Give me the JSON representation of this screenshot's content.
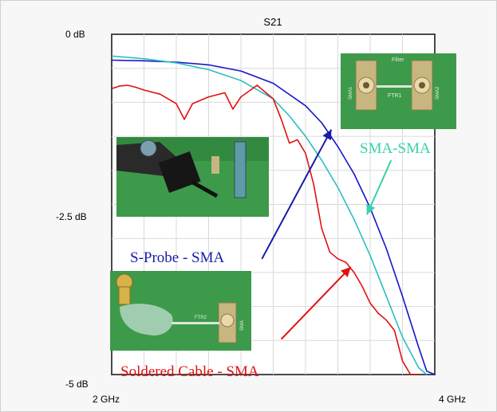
{
  "chart_data": {
    "type": "line",
    "title": "S21",
    "xlabel": "",
    "ylabel": "",
    "x_unit": "GHz",
    "xlim": [
      2,
      4
    ],
    "ylim": [
      -5,
      0
    ],
    "x_ticks": [
      "2 GHz",
      "4 GHz"
    ],
    "y_ticks": [
      {
        "value": 0,
        "label": "0 dB"
      },
      {
        "value": -2.5,
        "label": "-2.5 dB"
      },
      {
        "value": -5,
        "label": "-5 dB"
      }
    ],
    "grid": true,
    "series": [
      {
        "name": "S-Probe - SMA",
        "color": "#1515c8",
        "x": [
          2.0,
          2.2,
          2.4,
          2.6,
          2.8,
          3.0,
          3.2,
          3.3,
          3.4,
          3.5,
          3.6,
          3.7,
          3.8,
          3.9,
          3.95,
          4.0
        ],
        "y": [
          -0.38,
          -0.39,
          -0.41,
          -0.45,
          -0.54,
          -0.72,
          -1.05,
          -1.3,
          -1.65,
          -2.05,
          -2.55,
          -3.15,
          -3.85,
          -4.6,
          -4.95,
          -5.0
        ]
      },
      {
        "name": "SMA-SMA",
        "color": "#2bbfbf",
        "x": [
          2.0,
          2.2,
          2.4,
          2.6,
          2.8,
          3.0,
          3.1,
          3.2,
          3.3,
          3.4,
          3.5,
          3.6,
          3.7,
          3.8,
          3.9,
          3.95
        ],
        "y": [
          -0.32,
          -0.36,
          -0.42,
          -0.52,
          -0.68,
          -0.95,
          -1.2,
          -1.5,
          -1.85,
          -2.25,
          -2.72,
          -3.25,
          -3.85,
          -4.45,
          -4.9,
          -5.0
        ]
      },
      {
        "name": "Soldered Cable - SMA",
        "color": "#e01010",
        "x": [
          2.0,
          2.05,
          2.1,
          2.15,
          2.2,
          2.3,
          2.4,
          2.45,
          2.5,
          2.6,
          2.7,
          2.75,
          2.8,
          2.9,
          3.0,
          3.05,
          3.1,
          3.15,
          3.2,
          3.25,
          3.3,
          3.35,
          3.4,
          3.45,
          3.5,
          3.55,
          3.6,
          3.65,
          3.7,
          3.75,
          3.8,
          3.85,
          3.9
        ],
        "y": [
          -0.8,
          -0.76,
          -0.75,
          -0.78,
          -0.82,
          -0.88,
          -1.02,
          -1.25,
          -1.02,
          -0.92,
          -0.86,
          -1.1,
          -0.92,
          -0.75,
          -0.95,
          -1.25,
          -1.6,
          -1.55,
          -1.75,
          -2.2,
          -2.85,
          -3.2,
          -3.3,
          -3.35,
          -3.5,
          -3.7,
          -3.95,
          -4.1,
          -4.2,
          -4.35,
          -4.8,
          -5.0,
          -5.0
        ]
      }
    ],
    "annotations": [
      {
        "text": "S-Probe - SMA",
        "color": "#1a1aa8",
        "arrow_from": [
          2.93,
          -3.3
        ],
        "arrow_to": [
          3.36,
          -1.4
        ]
      },
      {
        "text": "SMA-SMA",
        "color": "#36d2a8",
        "arrow_from": [
          3.73,
          -1.85
        ],
        "arrow_to": [
          3.58,
          -2.65
        ]
      },
      {
        "text": "Soldered Cable - SMA",
        "color": "#e01010",
        "arrow_from": [
          3.05,
          -4.48
        ],
        "arrow_to": [
          3.48,
          -3.42
        ]
      }
    ],
    "photo_labels": {
      "filter": "Filter",
      "ftr1": "FTR1",
      "sma1": "SMA1",
      "sma2": "SMA2",
      "ftr2": "FTR2",
      "sma_small": "SMA"
    }
  }
}
